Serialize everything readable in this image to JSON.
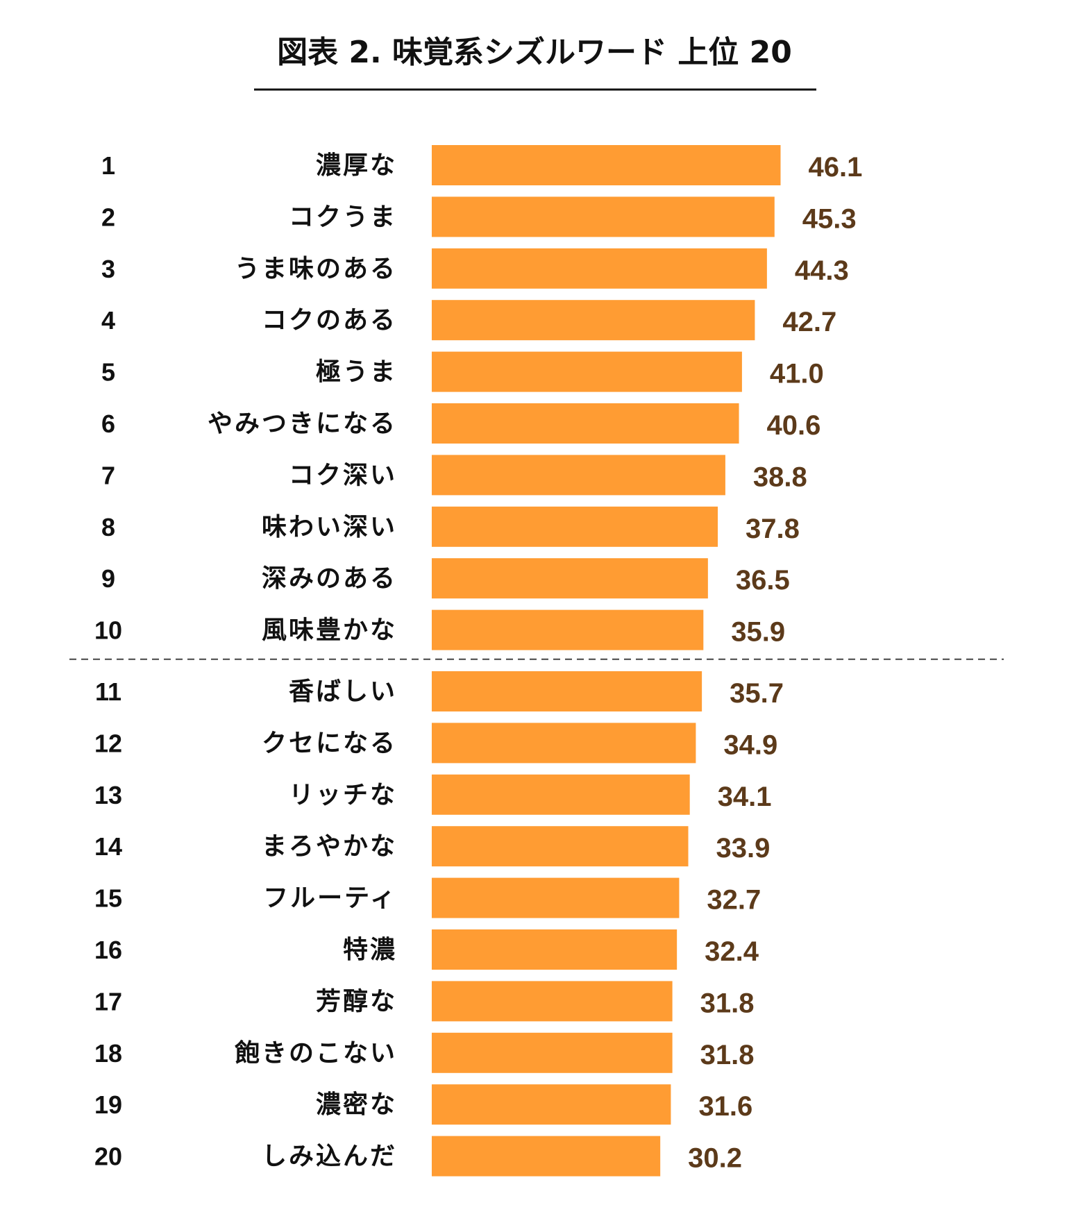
{
  "chart_data": {
    "type": "bar",
    "orientation": "horizontal",
    "title": "図表 2. 味覚系シズルワード 上位 20",
    "categories": [
      "濃厚な",
      "コクうま",
      "うま味のある",
      "コクのある",
      "極うま",
      "やみつきになる",
      "コク深い",
      "味わい深い",
      "深みのある",
      "風味豊かな",
      "香ばしい",
      "クセになる",
      "リッチな",
      "まろやかな",
      "フルーティ",
      "特濃",
      "芳醇な",
      "飽きのこない",
      "濃密な",
      "しみ込んだ"
    ],
    "ranks": [
      "1",
      "2",
      "3",
      "4",
      "5",
      "6",
      "7",
      "8",
      "9",
      "10",
      "11",
      "12",
      "13",
      "14",
      "15",
      "16",
      "17",
      "18",
      "19",
      "20"
    ],
    "values": [
      46.1,
      45.3,
      44.3,
      42.7,
      41.0,
      40.6,
      38.8,
      37.8,
      36.5,
      35.9,
      35.7,
      34.9,
      34.1,
      33.9,
      32.7,
      32.4,
      31.8,
      31.8,
      31.6,
      30.2
    ],
    "value_labels": [
      "46.1",
      "45.3",
      "44.3",
      "42.7",
      "41.0",
      "40.6",
      "38.8",
      "37.8",
      "36.5",
      "35.9",
      "35.7",
      "34.9",
      "34.1",
      "33.9",
      "32.7",
      "32.4",
      "31.8",
      "31.8",
      "31.6",
      "30.2"
    ],
    "divider_after_rank": 10,
    "grid": false,
    "legend": "none",
    "colors": {
      "bar": "#FF9C33",
      "value_label": "#5C3A1A",
      "text": "#111111",
      "rule": "#111111",
      "divider": "#444444"
    }
  }
}
